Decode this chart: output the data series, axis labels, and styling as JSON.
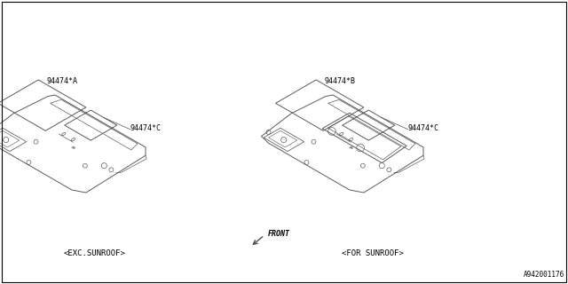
{
  "bg_color": "#ffffff",
  "border_color": "#000000",
  "line_color": "#505050",
  "part_number_watermark": "A942001176",
  "labels": {
    "left_part_A": "94474*A",
    "left_part_C": "94474*C",
    "right_part_B": "94474*B",
    "right_part_C": "94474*C",
    "left_caption": "<EXC.SUNROOF>",
    "right_caption": "<FOR SUNROOF>",
    "front_label": "FRONT"
  },
  "label_color": "#000000",
  "watermark_color": "#000000",
  "lw": 0.65
}
